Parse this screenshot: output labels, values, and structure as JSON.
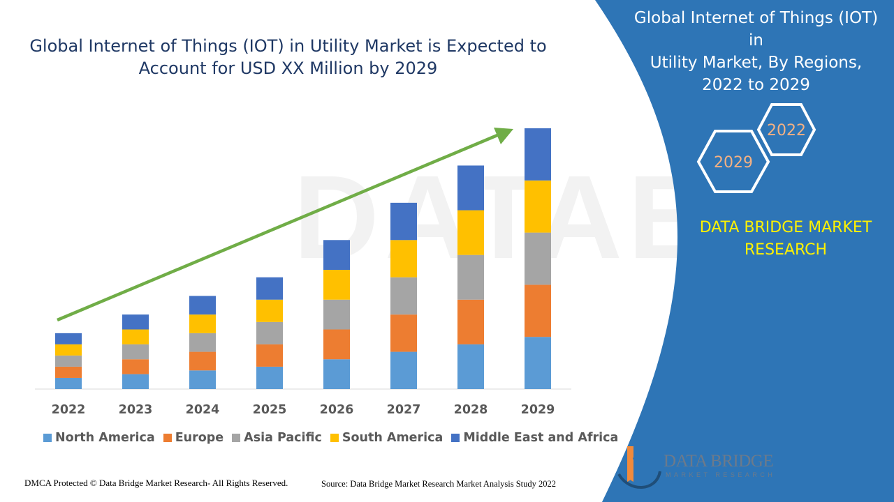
{
  "header": {
    "title_lines": [
      "Global Internet of Things (IOT) in Utility Market is Expected to",
      "Account for USD XX Million by 2029"
    ]
  },
  "side_panel": {
    "title_lines": [
      "Global Internet of Things (IOT) in",
      "Utility Market, By Regions,",
      "2022 to 2029"
    ],
    "hex_labels": [
      "2022",
      "2029"
    ],
    "brand_lines": [
      "DATA BRIDGE MARKET",
      "RESEARCH"
    ]
  },
  "footer": {
    "copyright": "DMCA Protected © Data Bridge Market Research- All Rights Reserved.",
    "source": "Source: Data Bridge Market Research Market Analysis Study 2022"
  },
  "logo": {
    "name": "DATA BRIDGE",
    "tagline": "MARKET RESEARCH"
  },
  "colors": {
    "panel_blue": "#2e75b6",
    "title_navy": "#1f3864",
    "arrow_green": "#70ad47",
    "brand_yellow": "#fff200",
    "hex_text": "#f4b183"
  },
  "chart_data": {
    "type": "bar",
    "stacked": true,
    "categories": [
      "2022",
      "2023",
      "2024",
      "2025",
      "2026",
      "2027",
      "2028",
      "2029"
    ],
    "series": [
      {
        "name": "North America",
        "color": "#5b9bd5",
        "values": [
          1.5,
          2.0,
          2.5,
          3.0,
          4.0,
          5.0,
          6.0,
          7.0
        ]
      },
      {
        "name": "Europe",
        "color": "#ed7d31",
        "values": [
          1.5,
          2.0,
          2.5,
          3.0,
          4.0,
          5.0,
          6.0,
          7.0
        ]
      },
      {
        "name": "Asia Pacific",
        "color": "#a5a5a5",
        "values": [
          1.5,
          2.0,
          2.5,
          3.0,
          4.0,
          5.0,
          6.0,
          7.0
        ]
      },
      {
        "name": "South America",
        "color": "#ffc000",
        "values": [
          1.5,
          2.0,
          2.5,
          3.0,
          4.0,
          5.0,
          6.0,
          7.0
        ]
      },
      {
        "name": "Middle East and Africa",
        "color": "#4472c4",
        "values": [
          1.5,
          2.0,
          2.5,
          3.0,
          4.0,
          5.0,
          6.0,
          7.0
        ]
      }
    ],
    "trend_arrow": true,
    "ylim": [
      0,
      35
    ],
    "grid": false,
    "legend_position": "bottom"
  }
}
